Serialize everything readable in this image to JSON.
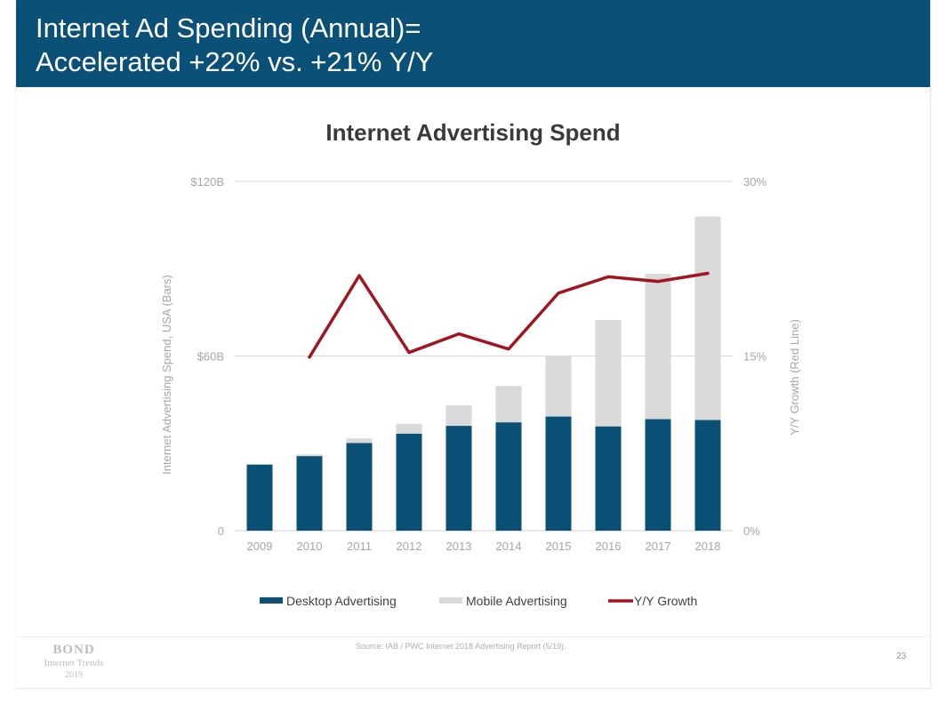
{
  "header": {
    "title_line1": "Internet Ad Spending (Annual)=",
    "title_line2": "Accelerated +22% vs. +21% Y/Y"
  },
  "colors": {
    "header_bg": "#0b5077",
    "desktop": "#0b5077",
    "mobile": "#d9d9d9",
    "growth": "#a11520"
  },
  "footer": {
    "logo_line1": "BOND",
    "logo_line2": "Internet Trends",
    "logo_line3": "2019",
    "source": "Source: IAB / PWC Internet 2018 Advertising Report (5/19).",
    "page_number": "23"
  },
  "chart_data": {
    "type": "bar",
    "stacked": true,
    "title": "Internet Advertising Spend",
    "ylabel": "Internet Advertising Spend, USA (Bars)",
    "y2label": "Y/Y Growth (Red Line)",
    "ylim": [
      0,
      120
    ],
    "y2lim": [
      0,
      30
    ],
    "y_ticks": [
      "0",
      "$60B",
      "$120B"
    ],
    "y_tick_values": [
      0,
      60,
      120
    ],
    "y2_ticks": [
      "0%",
      "15%",
      "30%"
    ],
    "y2_tick_values": [
      0,
      15,
      30
    ],
    "grid": true,
    "legend_position": "bottom",
    "categories": [
      "2009",
      "2010",
      "2011",
      "2012",
      "2013",
      "2014",
      "2015",
      "2016",
      "2017",
      "2018"
    ],
    "series": [
      {
        "name": "Desktop Advertising",
        "kind": "bar",
        "values": [
          22.7,
          25.6,
          30.1,
          33.3,
          36.0,
          37.2,
          39.2,
          35.8,
          38.3,
          38.0
        ]
      },
      {
        "name": "Mobile Advertising",
        "kind": "bar",
        "values": [
          0,
          0.6,
          1.6,
          3.4,
          7.1,
          12.5,
          20.7,
          36.6,
          49.9,
          69.9
        ]
      },
      {
        "name": "Y/Y Growth",
        "kind": "line",
        "axis": "right",
        "values": [
          null,
          14.9,
          21.9,
          15.3,
          16.9,
          15.6,
          20.4,
          21.8,
          21.4,
          22.1
        ]
      }
    ]
  }
}
